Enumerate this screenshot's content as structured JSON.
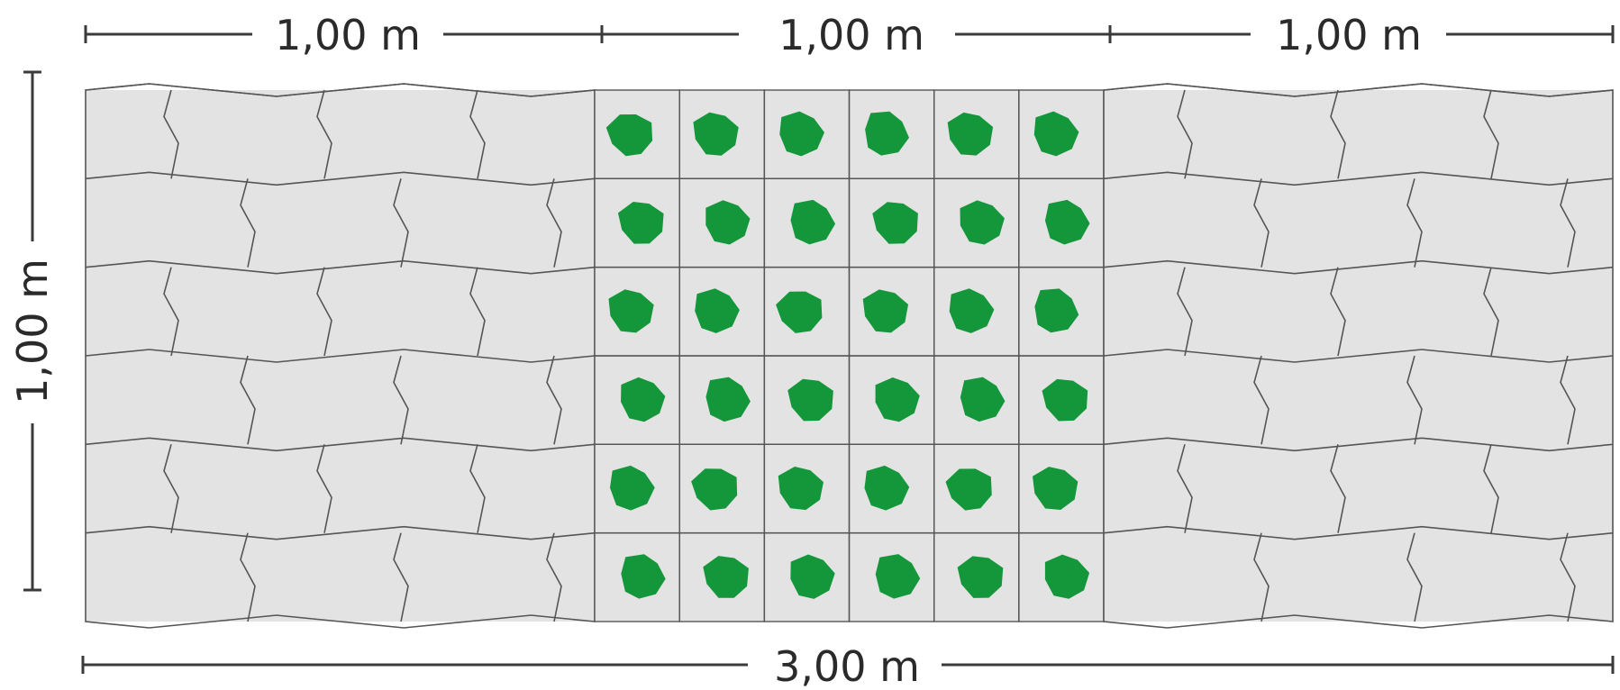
{
  "diagram": {
    "top_dimensions": [
      "1,00 m",
      "1,00 m",
      "1,00 m"
    ],
    "left_dimension": "1,00 m",
    "bottom_dimension": "3,00 m",
    "sections": [
      {
        "name": "paving-stones",
        "fill": "#e3e3e3"
      },
      {
        "name": "grass-pavers",
        "fill": "#e3e3e3",
        "hole_color": "#14963a"
      },
      {
        "name": "paving-stones",
        "fill": "#e3e3e3"
      }
    ],
    "colors": {
      "paver": "#e3e3e3",
      "joint": "#555555",
      "grass": "#14963a",
      "dimension": "#3a3a3a"
    }
  }
}
